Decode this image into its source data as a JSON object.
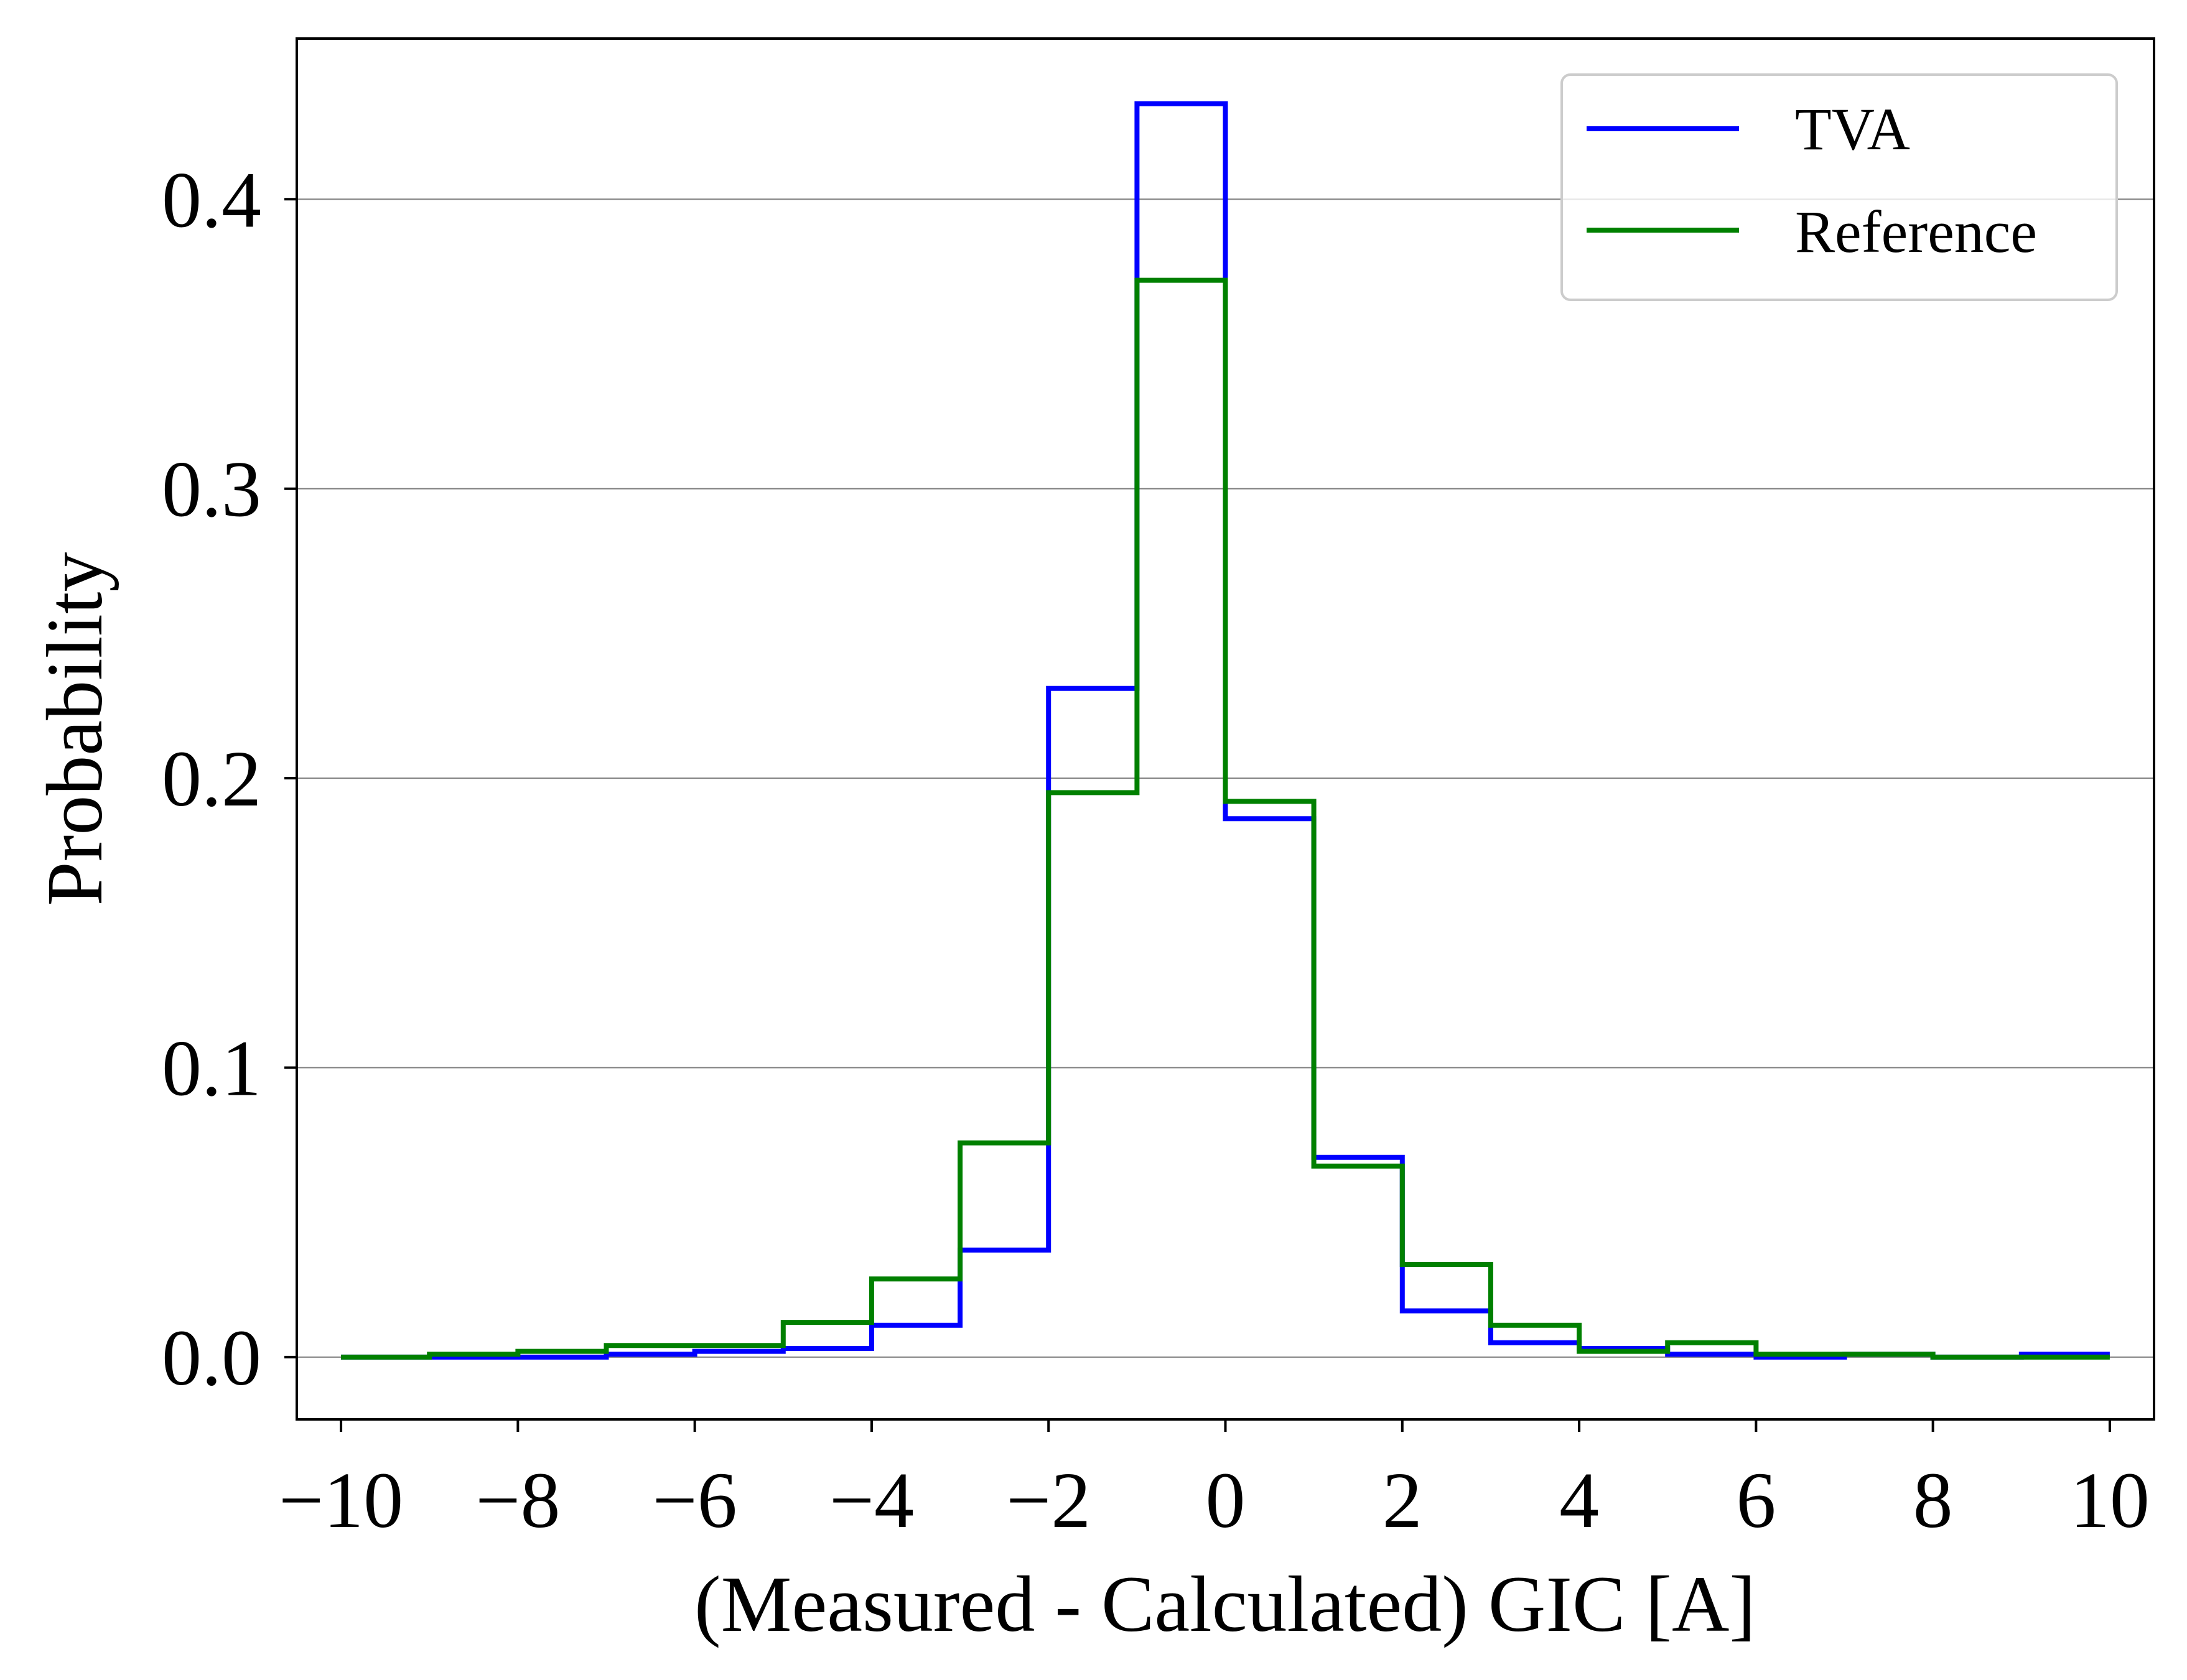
{
  "chart_data": {
    "type": "step",
    "title": "",
    "xlabel": "(Measured - Calculated) GIC [A]",
    "ylabel": "Probability",
    "xlim": [
      -10.5,
      10.5
    ],
    "ylim": [
      -0.0215,
      0.4555
    ],
    "bin_edges": [
      -10,
      -9,
      -8,
      -7,
      -6,
      -5,
      -4,
      -3,
      -2,
      -1,
      0,
      1,
      2,
      3,
      4,
      5,
      6,
      7,
      8,
      9,
      10
    ],
    "x_ticks": [
      -10,
      -8,
      -6,
      -4,
      -2,
      0,
      2,
      4,
      6,
      8,
      10
    ],
    "x_tick_labels": [
      "−10",
      "−8",
      "−6",
      "−4",
      "−2",
      "0",
      "2",
      "4",
      "6",
      "8",
      "10"
    ],
    "y_ticks": [
      0.0,
      0.1,
      0.2,
      0.3,
      0.4
    ],
    "y_tick_labels": [
      "0.0",
      "0.1",
      "0.2",
      "0.3",
      "0.4"
    ],
    "grid": "horizontal",
    "legend_position": "top-right",
    "series": [
      {
        "name": "TVA",
        "color": "#0000ff",
        "values": [
          0.0,
          0.0,
          0.0,
          0.001,
          0.002,
          0.003,
          0.011,
          0.037,
          0.231,
          0.433,
          0.186,
          0.069,
          0.016,
          0.005,
          0.003,
          0.001,
          0.0,
          0.001,
          0.0,
          0.001
        ]
      },
      {
        "name": "Reference",
        "color": "#008000",
        "values": [
          0.0,
          0.001,
          0.002,
          0.004,
          0.004,
          0.012,
          0.027,
          0.074,
          0.195,
          0.372,
          0.192,
          0.066,
          0.032,
          0.011,
          0.002,
          0.005,
          0.001,
          0.001,
          0.0,
          0.0
        ]
      }
    ]
  }
}
